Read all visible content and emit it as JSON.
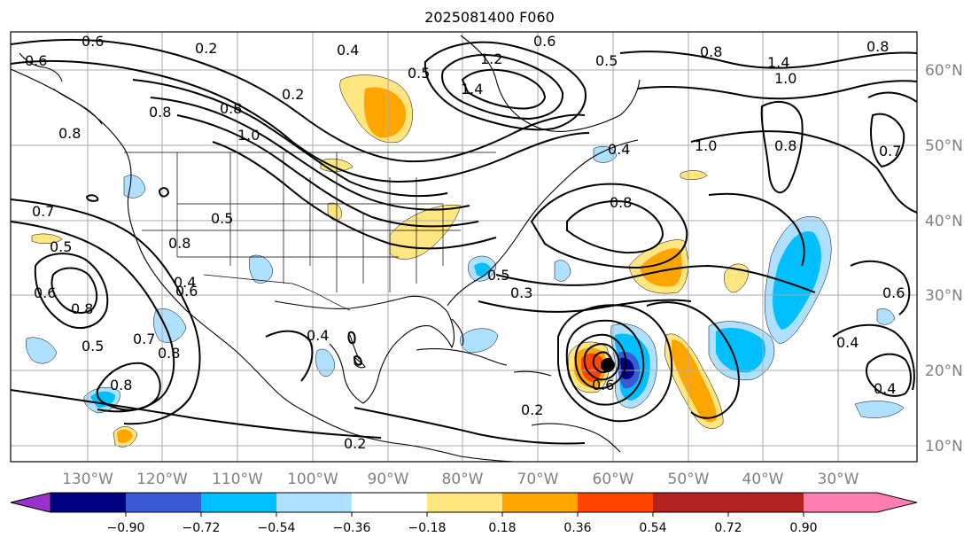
{
  "title": "2025081400 F060",
  "lon_labels": [
    "130°W",
    "120°W",
    "110°W",
    "100°W",
    "90°W",
    "80°W",
    "70°W",
    "60°W",
    "50°W",
    "40°W",
    "30°W"
  ],
  "lat_labels": [
    "60°N",
    "50°N",
    "40°N",
    "30°N",
    "20°N",
    "10°N"
  ],
  "colorbar": {
    "ticks": [
      "−0.90",
      "−0.72",
      "−0.54",
      "−0.36",
      "−0.18",
      "0.18",
      "0.36",
      "0.54",
      "0.72",
      "0.90"
    ],
    "colors": [
      "#9932cc",
      "#000080",
      "#3b5bd4",
      "#00bfff",
      "#b0e0ff",
      "#ffffff",
      "#ffe680",
      "#ffa500",
      "#ff4500",
      "#b22222",
      "#ff80b0"
    ]
  },
  "contour_labels": [
    "0.6",
    "0.2",
    "0.4",
    "0.5",
    "1.2",
    "0.6",
    "0.5",
    "0.8",
    "1.4",
    "1.0",
    "0.8",
    "0.6",
    "0.8",
    "1.0",
    "0.2",
    "0.8",
    "1.4",
    "0.7",
    "1.0",
    "0.8",
    "0.4",
    "0.8",
    "0.7",
    "0.5",
    "0.8",
    "0.4",
    "0.6",
    "0.8",
    "0.5",
    "0.6",
    "0.7",
    "0.8",
    "0.4",
    "0.8",
    "0.3",
    "0.5",
    "0.6",
    "0.4",
    "0.2",
    "0.2",
    "0.4",
    "0.6",
    "0.8",
    "0.5"
  ]
}
